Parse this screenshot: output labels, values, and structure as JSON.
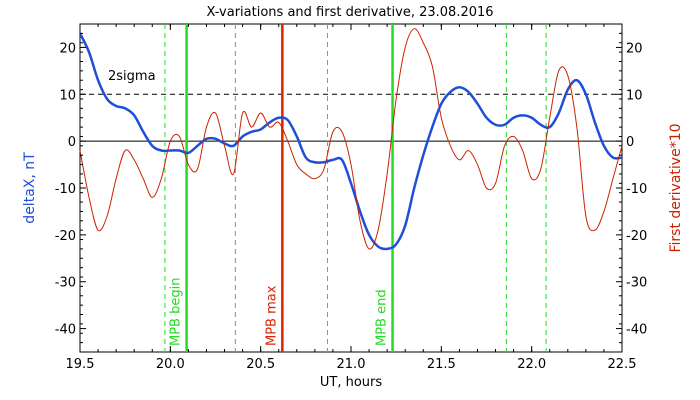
{
  "chart_data": {
    "type": "line",
    "title": "X-variations and first derivative, 23.08.2016",
    "xlabel": "UT, hours",
    "ylabel_left": "deltaX, nT",
    "ylabel_right": "First derivative*10",
    "xlim": [
      19.5,
      22.5
    ],
    "ylim": [
      -45,
      25
    ],
    "xticks": [
      19.5,
      20.0,
      20.5,
      21.0,
      21.5,
      22.0,
      22.5
    ],
    "yticks": [
      -40,
      -30,
      -20,
      -10,
      0,
      10,
      20
    ],
    "xtick_labels": [
      "19.5",
      "20.0",
      "20.5",
      "21.0",
      "21.5",
      "22.0",
      "22.5"
    ],
    "ytick_labels": [
      "-40",
      "-30",
      "-20",
      "-10",
      "0",
      "10",
      "20"
    ],
    "sigma_label": "2sigma",
    "sigma_level": 10,
    "zero_level": 0,
    "colors": {
      "deltaX": "#1f4fd8",
      "derivative": "#cc2200",
      "marker_green": "#22dd22",
      "marker_red": "#dd2200",
      "left_label": "#1f4fd8",
      "right_label": "#cc2200"
    },
    "markers_solid": [
      {
        "x": 20.09,
        "label": "MPB begin",
        "color": "#22dd22"
      },
      {
        "x": 20.62,
        "label": "MPB max",
        "color": "#dd2200"
      },
      {
        "x": 21.23,
        "label": "MPB end",
        "color": "#22dd22"
      }
    ],
    "markers_dashed": [
      19.97,
      20.36,
      20.87,
      21.86,
      22.08
    ],
    "series": [
      {
        "name": "deltaX, nT",
        "color": "#1f4fd8",
        "x": [
          19.5,
          19.55,
          19.6,
          19.65,
          19.7,
          19.75,
          19.8,
          19.85,
          19.9,
          19.95,
          20.0,
          20.05,
          20.1,
          20.15,
          20.2,
          20.25,
          20.3,
          20.35,
          20.4,
          20.45,
          20.5,
          20.55,
          20.6,
          20.65,
          20.7,
          20.75,
          20.8,
          20.85,
          20.9,
          20.95,
          21.0,
          21.05,
          21.1,
          21.15,
          21.2,
          21.25,
          21.3,
          21.35,
          21.4,
          21.45,
          21.5,
          21.55,
          21.6,
          21.65,
          21.7,
          21.75,
          21.8,
          21.85,
          21.9,
          21.95,
          22.0,
          22.05,
          22.1,
          22.15,
          22.2,
          22.25,
          22.3,
          22.35,
          22.4,
          22.45,
          22.5
        ],
        "values": [
          23,
          19,
          13,
          9,
          7.5,
          7,
          5.5,
          2,
          -1,
          -2,
          -2,
          -2,
          -2.5,
          -1,
          0.5,
          0.5,
          -0.5,
          -1,
          1,
          2,
          2.5,
          4,
          5,
          4.5,
          1,
          -3.5,
          -4.5,
          -4.5,
          -4,
          -4,
          -9,
          -15,
          -20,
          -22.5,
          -23,
          -22,
          -18,
          -10,
          -3,
          3,
          8,
          10.5,
          11.5,
          10.5,
          8,
          5,
          3.5,
          3.5,
          5,
          5.5,
          5,
          3.5,
          3,
          6,
          11,
          13,
          10,
          4,
          -1,
          -3.5,
          -3.5
        ]
      },
      {
        "name": "First derivative*10",
        "color": "#cc2200",
        "x": [
          19.5,
          19.55,
          19.6,
          19.65,
          19.7,
          19.75,
          19.8,
          19.85,
          19.9,
          19.95,
          20.0,
          20.05,
          20.1,
          20.15,
          20.2,
          20.25,
          20.3,
          20.35,
          20.4,
          20.45,
          20.5,
          20.55,
          20.6,
          20.65,
          20.7,
          20.75,
          20.8,
          20.85,
          20.9,
          20.95,
          21.0,
          21.05,
          21.1,
          21.15,
          21.2,
          21.25,
          21.3,
          21.35,
          21.4,
          21.45,
          21.5,
          21.55,
          21.6,
          21.65,
          21.7,
          21.75,
          21.8,
          21.85,
          21.9,
          21.95,
          22.0,
          22.05,
          22.1,
          22.15,
          22.2,
          22.25,
          22.3,
          22.35,
          22.4,
          22.45,
          22.5
        ],
        "values": [
          -2,
          -12,
          -19,
          -16,
          -8,
          -2,
          -4,
          -8,
          -12,
          -8,
          0,
          1,
          -5,
          -6,
          3,
          6,
          -1,
          -7,
          6,
          3,
          6,
          3,
          4,
          0,
          -5,
          -7,
          -8,
          -6,
          2,
          2,
          -5,
          -17,
          -23,
          -19,
          -7,
          9,
          20,
          24,
          21,
          16,
          5,
          -1,
          -4,
          -2,
          -5,
          -10,
          -9,
          -1,
          1,
          -2,
          -8,
          -6,
          5,
          15,
          14,
          3,
          -16,
          -19,
          -15,
          -8,
          -1
        ]
      }
    ]
  }
}
